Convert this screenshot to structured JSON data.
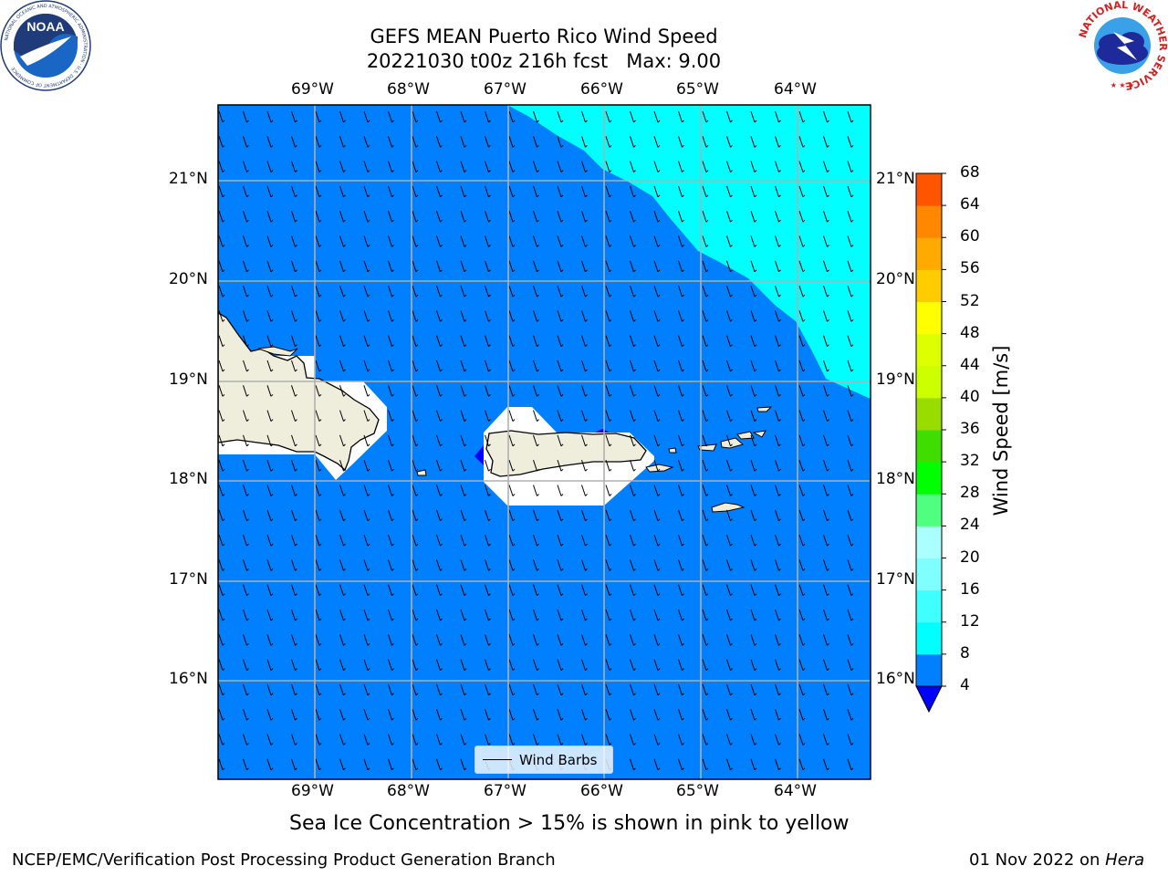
{
  "title": {
    "line1": "GEFS MEAN Puerto Rico Wind Speed",
    "line2": "20221030 t00z 216h fcst   Max: 9.00"
  },
  "axes": {
    "lon_ticks": [
      "69°W",
      "68°W",
      "67°W",
      "66°W",
      "65°W",
      "64°W"
    ],
    "lat_ticks": [
      "21°N",
      "20°N",
      "19°N",
      "18°N",
      "17°N",
      "16°N"
    ]
  },
  "colorbar": {
    "label": "Wind Speed [m/s]",
    "ticks": [
      "4",
      "8",
      "12",
      "16",
      "20",
      "24",
      "28",
      "32",
      "36",
      "40",
      "44",
      "48",
      "52",
      "56",
      "60",
      "64",
      "68"
    ],
    "colors": [
      "#0080ff",
      "#00ffff",
      "#40ffff",
      "#80ffff",
      "#aaffff",
      "#50ff80",
      "#00ff00",
      "#40dd00",
      "#99dd00",
      "#ccff00",
      "#ddff00",
      "#ffff00",
      "#ffcc00",
      "#ffaa00",
      "#ff8800",
      "#ff5500",
      "#ff2200",
      "#ff0000"
    ],
    "under_color": "#0000ff"
  },
  "legend": {
    "label": "Wind Barbs"
  },
  "note": "Sea Ice Concentration > 15% is shown in pink to yellow",
  "footer": {
    "left": "NCEP/EMC/Verification Post Processing Product Generation Branch",
    "date": "01 Nov 2022 on ",
    "machine": "Hera"
  },
  "logos": {
    "noaa": "NOAA",
    "noaa_ring": "NATIONAL OCEANIC AND ATMOSPHERIC ADMINISTRATION · U.S. DEPARTMENT OF COMMERCE",
    "nws_ring": "NATIONAL WEATHER SERVICE"
  },
  "colors": {
    "ocean": "#0080ff",
    "high_wind": "#00ffff",
    "land": "#efeedc",
    "grid": "#b0b0b0"
  }
}
